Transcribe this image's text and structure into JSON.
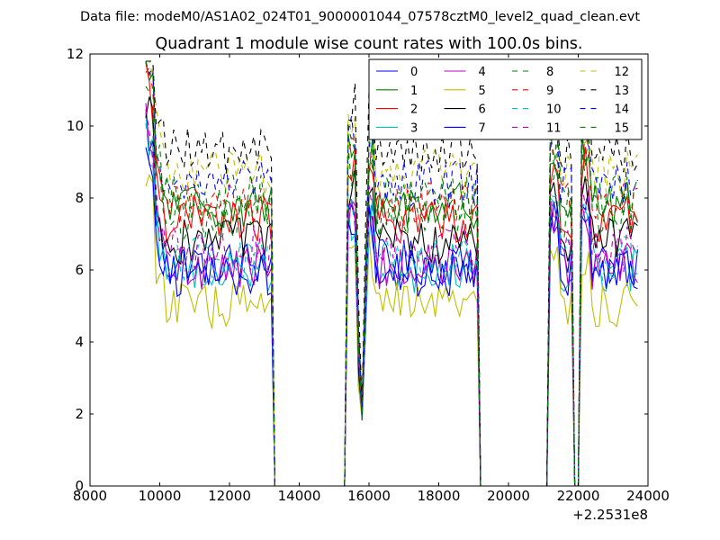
{
  "chart_data": {
    "type": "line",
    "suptitle": "Data file: modeM0/AS1A02_024T01_9000001044_07578cztM0_level2_quad_clean.evt",
    "title": "Quadrant 1 module wise count rates with 100.0s bins.",
    "xlabel": "",
    "ylabel": "",
    "x_offset_label": "+2.2531e8",
    "xlim": [
      8000,
      24000
    ],
    "ylim": [
      0,
      12
    ],
    "x_ticks": [
      8000,
      10000,
      12000,
      14000,
      16000,
      18000,
      20000,
      22000,
      24000
    ],
    "y_ticks": [
      0,
      2,
      4,
      6,
      8,
      10,
      12
    ],
    "x_tick_labels": [
      "8000",
      "10000",
      "12000",
      "14000",
      "16000",
      "18000",
      "20000",
      "22000",
      "24000"
    ],
    "y_tick_labels": [
      "0",
      "2",
      "4",
      "6",
      "8",
      "10",
      "12"
    ],
    "legend_position": "top-right",
    "legend_columns": 4,
    "gaps": [
      [
        13250,
        15350
      ],
      [
        19120,
        21150
      ],
      [
        21850,
        22050
      ]
    ],
    "drops": [
      [
        15600,
        15950
      ]
    ],
    "segments": [
      [
        9600,
        13200
      ],
      [
        15380,
        15600
      ],
      [
        15950,
        19100
      ],
      [
        21180,
        21800
      ],
      [
        22100,
        23700
      ]
    ],
    "series": [
      {
        "name": "0",
        "color": "#0000ff",
        "dash": "solid",
        "level": 6.2
      },
      {
        "name": "1",
        "color": "#008000",
        "dash": "solid",
        "level": 7.8
      },
      {
        "name": "2",
        "color": "#ff0000",
        "dash": "solid",
        "level": 7.4
      },
      {
        "name": "3",
        "color": "#00bfbf",
        "dash": "solid",
        "level": 6.0
      },
      {
        "name": "4",
        "color": "#bf00bf",
        "dash": "solid",
        "level": 6.1
      },
      {
        "name": "5",
        "color": "#bfbf00",
        "dash": "solid",
        "level": 5.0
      },
      {
        "name": "6",
        "color": "#000000",
        "dash": "solid",
        "level": 6.8
      },
      {
        "name": "7",
        "color": "#0000ff",
        "dash": "solid",
        "level": 5.9
      },
      {
        "name": "8",
        "color": "#008000",
        "dash": "dashed",
        "level": 7.5
      },
      {
        "name": "9",
        "color": "#ff0000",
        "dash": "dashed",
        "level": 7.8
      },
      {
        "name": "10",
        "color": "#00bfbf",
        "dash": "dashed",
        "level": 6.3
      },
      {
        "name": "11",
        "color": "#bf00bf",
        "dash": "dashed",
        "level": 6.6
      },
      {
        "name": "12",
        "color": "#bfbf00",
        "dash": "dashed",
        "level": 8.7
      },
      {
        "name": "13",
        "color": "#000000",
        "dash": "dashed",
        "level": 9.3
      },
      {
        "name": "14",
        "color": "#0000ff",
        "dash": "dashed",
        "level": 8.4
      },
      {
        "name": "15",
        "color": "#008000",
        "dash": "dashed",
        "level": 8.0
      }
    ]
  }
}
